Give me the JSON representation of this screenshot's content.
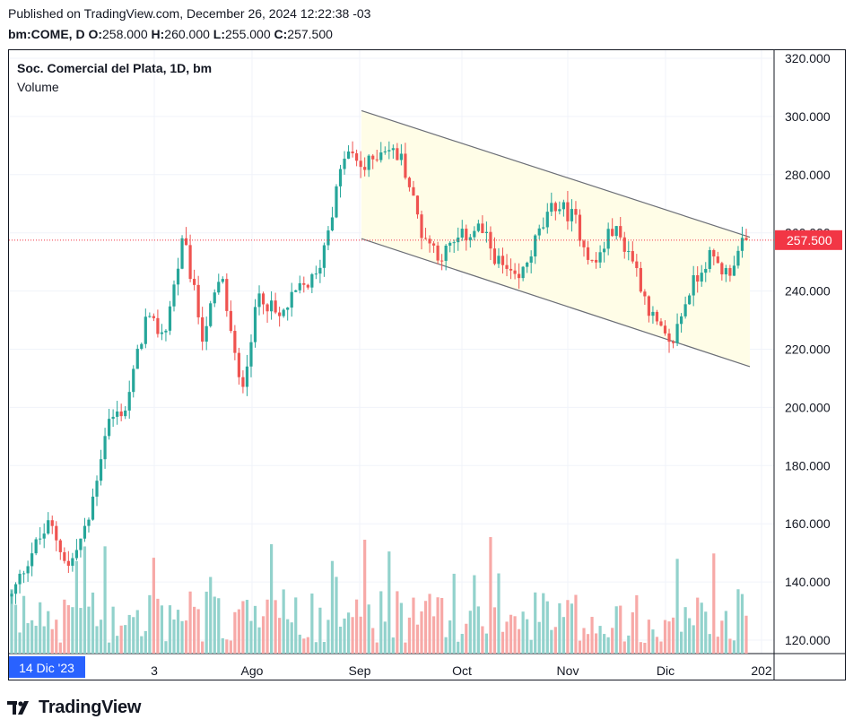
{
  "header": {
    "published": "Published on TradingView.com, December 26, 2024 12:22:38 -03",
    "symbol": "bm:COME, D",
    "open_label": "O:",
    "open": "258.000",
    "high_label": "H:",
    "high": "260.000",
    "low_label": "L:",
    "low": "255.000",
    "close_label": "C:",
    "close": "257.500"
  },
  "legend": {
    "title": "Soc. Comercial del Plata, 1D, bm",
    "volume": "Volume"
  },
  "footer": {
    "brand": "TradingView"
  },
  "colors": {
    "up": "#26a69a",
    "down": "#ef5350",
    "vol_up": "#92d2cc",
    "vol_down": "#f7a9a7",
    "grid": "#f0f3fa",
    "channel_fill": "#fffde7",
    "channel_line": "#6b6e76",
    "price_line": "#f23645"
  },
  "chart_data": {
    "type": "candlestick",
    "symbol": "bm:COME",
    "interval": "1D",
    "y_axis": {
      "min": 115,
      "max": 325,
      "ticks": [
        "320.000",
        "300.000",
        "280.000",
        "260.000",
        "240.000",
        "220.000",
        "200.000",
        "180.000",
        "160.000",
        "140.000",
        "120.000"
      ]
    },
    "x_axis": {
      "ticks": [
        "3",
        "Ago",
        "Sep",
        "Oct",
        "Nov",
        "Dic",
        "202"
      ],
      "crosshair_label": "14 Dic '23"
    },
    "last_price": 257.5,
    "last_price_label": "257.500",
    "channel": {
      "upper": [
        {
          "date": "2024-09-02",
          "price": 302
        },
        {
          "date": "2024-12-24",
          "price": 258.5
        }
      ],
      "lower": [
        {
          "date": "2024-09-02",
          "price": 258
        },
        {
          "date": "2024-12-24",
          "price": 214
        }
      ]
    },
    "price_path": [
      [
        2024.45,
        135
      ],
      [
        2024.47,
        150
      ],
      [
        2024.49,
        160
      ],
      [
        2024.51,
        145
      ],
      [
        2024.53,
        160
      ],
      [
        2024.55,
        195
      ],
      [
        2024.57,
        200
      ],
      [
        2024.59,
        230
      ],
      [
        2024.61,
        225
      ],
      [
        2024.63,
        258
      ],
      [
        2024.65,
        225
      ],
      [
        2024.67,
        245
      ],
      [
        2024.69,
        205
      ],
      [
        2024.71,
        240
      ],
      [
        2024.73,
        230
      ],
      [
        2024.75,
        240
      ],
      [
        2024.77,
        245
      ],
      [
        2024.8,
        288
      ],
      [
        2024.82,
        282
      ],
      [
        2024.84,
        290
      ],
      [
        2024.86,
        285
      ],
      [
        2024.88,
        260
      ],
      [
        2024.9,
        252
      ],
      [
        2024.92,
        258
      ],
      [
        2024.94,
        262
      ],
      [
        2024.96,
        250
      ],
      [
        2024.98,
        242
      ],
      [
        2025.0,
        258
      ],
      [
        2025.02,
        270
      ],
      [
        2025.04,
        265
      ],
      [
        2025.06,
        248
      ],
      [
        2025.08,
        262
      ],
      [
        2025.1,
        252
      ],
      [
        2025.12,
        232
      ],
      [
        2025.14,
        220
      ],
      [
        2025.16,
        240
      ],
      [
        2025.18,
        252
      ],
      [
        2025.2,
        246
      ],
      [
        2025.22,
        258
      ]
    ]
  }
}
